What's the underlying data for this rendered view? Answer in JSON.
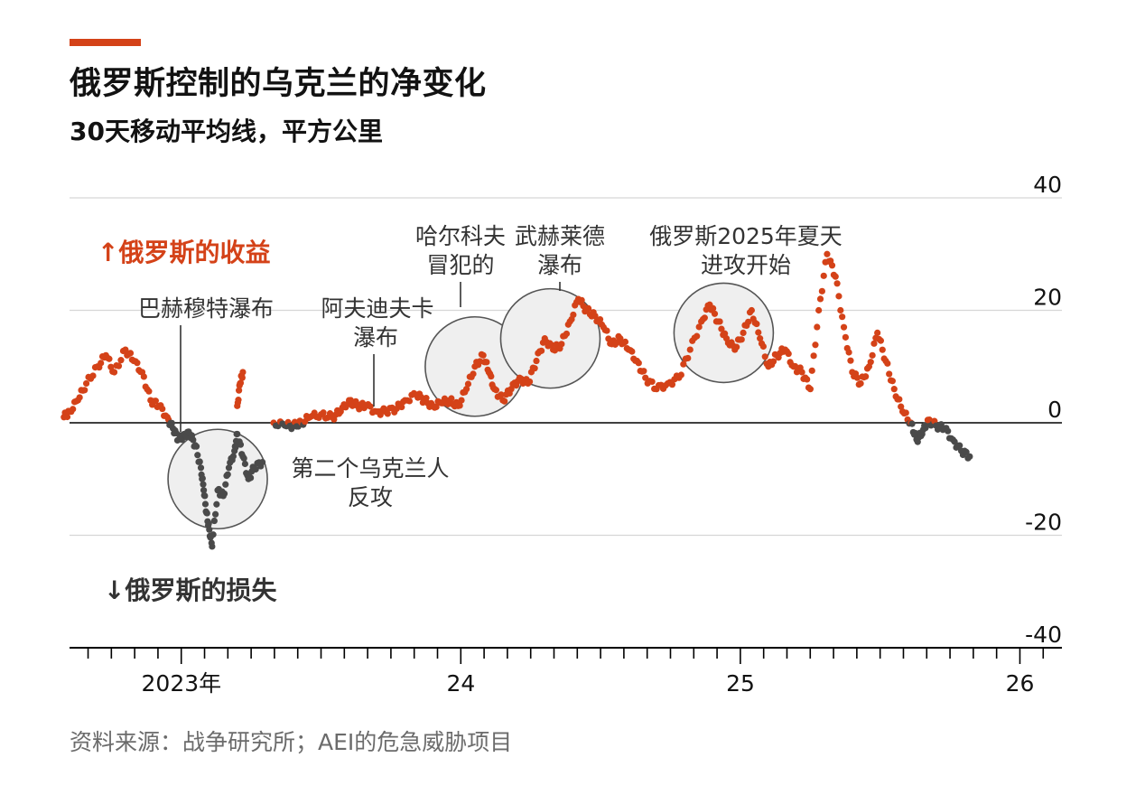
{
  "header": {
    "title": "俄罗斯控制的乌克兰的净变化",
    "subtitle": "30天移动平均线，平方公里"
  },
  "source": "资料来源：战争研究所；AEI的危急威胁项目",
  "colors": {
    "accent": "#d44218",
    "gain": "#d44218",
    "loss": "#4a4a4a",
    "circle_fill": "#efefef",
    "circle_stroke": "#555555"
  },
  "chart_data": {
    "type": "scatter",
    "title": "俄罗斯控制的乌克兰的净变化",
    "subtitle": "30天移动平均线，平方公里",
    "ylim": [
      -40,
      40
    ],
    "yticks": [
      40,
      20,
      0,
      -20,
      -40
    ],
    "xlim": [
      2022.6,
      2026.15
    ],
    "x_ticks": [
      {
        "label": "2023年",
        "x": 2023.0
      },
      {
        "label": "24",
        "x": 2024.0
      },
      {
        "label": "25",
        "x": 2025.0
      },
      {
        "label": "26",
        "x": 2026.0
      }
    ],
    "gain_label": "↑俄罗斯的收益",
    "loss_label": "↓俄罗斯的损失",
    "series": [
      {
        "points": [
          [
            2022.58,
            1
          ],
          [
            2022.6,
            2
          ],
          [
            2022.63,
            4
          ],
          [
            2022.66,
            7
          ],
          [
            2022.7,
            10
          ],
          [
            2022.73,
            12
          ],
          [
            2022.76,
            9
          ],
          [
            2022.8,
            13
          ],
          [
            2022.83,
            11
          ],
          [
            2022.86,
            9
          ],
          [
            2022.89,
            4
          ],
          [
            2022.92,
            3
          ],
          [
            2022.95,
            1
          ],
          [
            2022.97,
            -1
          ],
          [
            2022.99,
            -3
          ],
          [
            2023.01,
            -2
          ],
          [
            2023.03,
            -2
          ],
          [
            2023.05,
            -4
          ],
          [
            2023.07,
            -8
          ],
          [
            2023.08,
            -12
          ],
          [
            2023.09,
            -16
          ],
          [
            2023.1,
            -19
          ],
          [
            2023.11,
            -22
          ],
          [
            2023.13,
            -12
          ],
          [
            2023.15,
            -13
          ],
          [
            2023.17,
            -8
          ],
          [
            2023.19,
            -5
          ],
          [
            2023.2,
            -2
          ],
          [
            2023.22,
            -6
          ],
          [
            2023.24,
            -10
          ],
          [
            2023.26,
            -8
          ],
          [
            2023.29,
            -7
          ],
          [
            2023.2,
            3
          ],
          [
            2023.21,
            7
          ],
          [
            2023.22,
            9
          ],
          [
            2023.33,
            0
          ],
          [
            2023.37,
            -0.5
          ],
          [
            2023.4,
            -0.5
          ],
          [
            2023.43,
            0
          ],
          [
            2023.46,
            1
          ],
          [
            2023.5,
            1.5
          ],
          [
            2023.54,
            1
          ],
          [
            2023.57,
            2
          ],
          [
            2023.6,
            4
          ],
          [
            2023.63,
            3
          ],
          [
            2023.66,
            3
          ],
          [
            2023.7,
            2
          ],
          [
            2023.73,
            2
          ],
          [
            2023.77,
            2.5
          ],
          [
            2023.8,
            4
          ],
          [
            2023.84,
            5
          ],
          [
            2023.87,
            4
          ],
          [
            2023.9,
            3
          ],
          [
            2023.93,
            3.5
          ],
          [
            2023.96,
            4
          ],
          [
            2023.99,
            3
          ],
          [
            2024.02,
            6
          ],
          [
            2024.05,
            10
          ],
          [
            2024.08,
            12
          ],
          [
            2024.1,
            9
          ],
          [
            2024.12,
            6
          ],
          [
            2024.15,
            4
          ],
          [
            2024.18,
            6
          ],
          [
            2024.21,
            8
          ],
          [
            2024.24,
            7
          ],
          [
            2024.27,
            11
          ],
          [
            2024.3,
            15
          ],
          [
            2024.33,
            13
          ],
          [
            2024.36,
            14
          ],
          [
            2024.39,
            18
          ],
          [
            2024.42,
            22
          ],
          [
            2024.45,
            20
          ],
          [
            2024.48,
            19
          ],
          [
            2024.51,
            17
          ],
          [
            2024.54,
            14
          ],
          [
            2024.57,
            15
          ],
          [
            2024.6,
            13
          ],
          [
            2024.63,
            11
          ],
          [
            2024.66,
            8
          ],
          [
            2024.7,
            6
          ],
          [
            2024.74,
            7
          ],
          [
            2024.78,
            8
          ],
          [
            2024.82,
            13
          ],
          [
            2024.86,
            18
          ],
          [
            2024.89,
            21
          ],
          [
            2024.92,
            18
          ],
          [
            2024.95,
            15
          ],
          [
            2024.98,
            13
          ],
          [
            2025.01,
            16
          ],
          [
            2025.04,
            20
          ],
          [
            2025.07,
            15
          ],
          [
            2025.1,
            10
          ],
          [
            2025.13,
            12
          ],
          [
            2025.16,
            13
          ],
          [
            2025.19,
            10
          ],
          [
            2025.22,
            9
          ],
          [
            2025.25,
            6
          ],
          [
            2025.28,
            20
          ],
          [
            2025.31,
            30
          ],
          [
            2025.34,
            26
          ],
          [
            2025.37,
            17
          ],
          [
            2025.4,
            9
          ],
          [
            2025.43,
            7
          ],
          [
            2025.46,
            10
          ],
          [
            2025.49,
            16
          ],
          [
            2025.52,
            11
          ],
          [
            2025.55,
            6
          ],
          [
            2025.58,
            2
          ],
          [
            2025.61,
            0
          ],
          [
            2025.63,
            -3
          ],
          [
            2025.65,
            -2
          ],
          [
            2025.67,
            0.5
          ],
          [
            2025.7,
            -0.5
          ],
          [
            2025.73,
            -1
          ],
          [
            2025.76,
            -3
          ],
          [
            2025.79,
            -5
          ],
          [
            2025.82,
            -6
          ]
        ]
      }
    ]
  },
  "annotations": {
    "bakhmut": "巴赫穆特瀑布",
    "counteroffensive": [
      "第二个乌克兰人",
      "反攻"
    ],
    "avdiivka": [
      "阿夫迪夫卡",
      "瀑布"
    ],
    "kharkiv": [
      "哈尔科夫",
      "冒犯的"
    ],
    "vuhledar": [
      "武赫莱德",
      "瀑布"
    ],
    "summer_offensive": [
      "俄罗斯2025年夏天",
      "进攻开始"
    ]
  }
}
